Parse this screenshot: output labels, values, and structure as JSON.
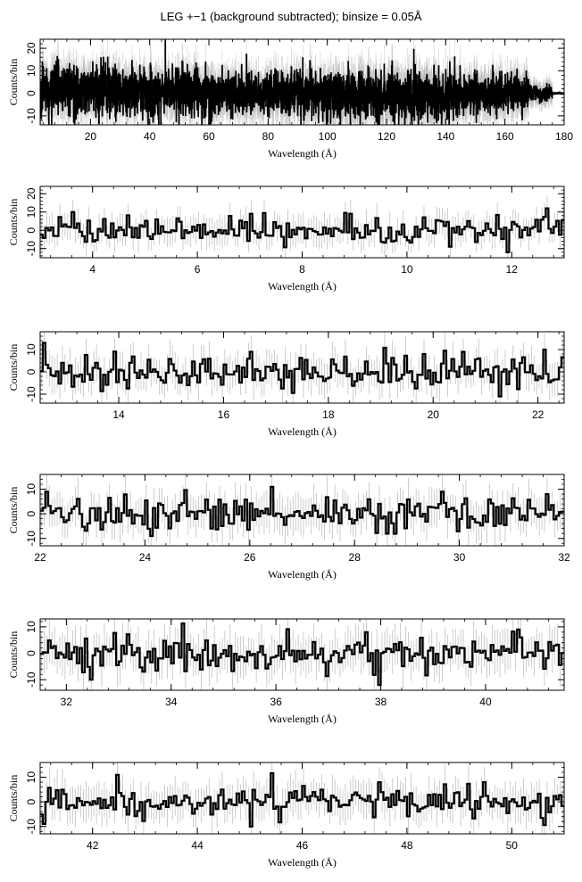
{
  "title": "LEG +−1 (background subtracted); binsize = 0.05Å",
  "chart_data": [
    {
      "type": "line",
      "panel": 1,
      "xlim": [
        3,
        180
      ],
      "ylim": [
        -14,
        24
      ],
      "xlabel": "Wavelength (Å)",
      "ylabel": "Counts/bin",
      "xticks": [
        20,
        40,
        60,
        80,
        100,
        120,
        140,
        160,
        180
      ],
      "yticks": [
        -10,
        0,
        10,
        20
      ],
      "series": [
        {
          "segments": [
            {
              "x0": 3,
              "x1": 60,
              "center": 1,
              "amp": 9,
              "err": 7
            },
            {
              "x0": 60,
              "x1": 100,
              "center": 0,
              "amp": 8,
              "err": 7
            },
            {
              "x0": 100,
              "x1": 145,
              "center": -1,
              "amp": 9,
              "err": 8
            },
            {
              "x0": 145,
              "x1": 168,
              "center": 0,
              "amp": 7,
              "err": 7
            },
            {
              "x0": 168,
              "x1": 176,
              "center": 0,
              "amp": 3,
              "err": 4
            },
            {
              "x0": 176,
              "x1": 180,
              "center": 0,
              "amp": 0.3,
              "err": 0.5
            }
          ],
          "points": [
            {
              "x": 8,
              "y": 12
            },
            {
              "x": 9.2,
              "y": 15
            },
            {
              "x": 84.5,
              "y": 10
            },
            {
              "x": 97,
              "y": -13
            },
            {
              "x": 92,
              "y": -12
            },
            {
              "x": 126,
              "y": -8
            },
            {
              "x": 161,
              "y": -9
            },
            {
              "x": 168,
              "y": 6
            }
          ]
        }
      ]
    },
    {
      "type": "line",
      "panel": 2,
      "xlim": [
        3,
        13
      ],
      "ylim": [
        -15,
        24
      ],
      "xlabel": "Wavelength (Å)",
      "ylabel": "Counts/bin",
      "xticks": [
        4,
        6,
        8,
        10,
        12
      ],
      "yticks": [
        -10,
        0,
        10,
        20
      ],
      "series": [
        {
          "segments": [
            {
              "x0": 3,
              "x1": 13,
              "center": 0,
              "amp": 6,
              "err": 7
            }
          ],
          "points": [
            {
              "x": 3.6,
              "y": 13
            },
            {
              "x": 3.65,
              "y": 10
            },
            {
              "x": 7.0,
              "y": 9
            },
            {
              "x": 8.95,
              "y": 17
            },
            {
              "x": 8.9,
              "y": 9
            },
            {
              "x": 11.9,
              "y": -12
            },
            {
              "x": 12.65,
              "y": 12
            },
            {
              "x": 13.0,
              "y": 8
            }
          ]
        }
      ]
    },
    {
      "type": "line",
      "panel": 3,
      "xlim": [
        12.5,
        22.5
      ],
      "ylim": [
        -14,
        18
      ],
      "xlabel": "Wavelength (Å)",
      "ylabel": "Counts/bin",
      "xticks": [
        14,
        16,
        18,
        20,
        22
      ],
      "yticks": [
        -10,
        0,
        10
      ],
      "series": [
        {
          "segments": [
            {
              "x0": 12.5,
              "x1": 22.5,
              "center": 0,
              "amp": 6,
              "err": 7
            }
          ],
          "points": [
            {
              "x": 12.55,
              "y": 13
            },
            {
              "x": 16.5,
              "y": 9
            },
            {
              "x": 20.55,
              "y": 9
            },
            {
              "x": 21.25,
              "y": -11
            },
            {
              "x": 22.1,
              "y": 10
            }
          ]
        }
      ]
    },
    {
      "type": "line",
      "panel": 4,
      "xlim": [
        22,
        32
      ],
      "ylim": [
        -13,
        16
      ],
      "xlabel": "Wavelength (Å)",
      "ylabel": "Counts/bin",
      "xticks": [
        22,
        24,
        26,
        28,
        30,
        32
      ],
      "yticks": [
        -10,
        0,
        10
      ],
      "series": [
        {
          "segments": [
            {
              "x0": 22,
              "x1": 32,
              "center": 0,
              "amp": 5.5,
              "err": 7
            }
          ],
          "points": [
            {
              "x": 22.15,
              "y": 9
            },
            {
              "x": 26.45,
              "y": 11
            },
            {
              "x": 29.7,
              "y": 9
            },
            {
              "x": 31.7,
              "y": 8
            },
            {
              "x": 24.1,
              "y": -9
            }
          ]
        }
      ]
    },
    {
      "type": "line",
      "panel": 5,
      "xlim": [
        31.5,
        41.5
      ],
      "ylim": [
        -14,
        13
      ],
      "xlabel": "Wavelength (Å)",
      "ylabel": "Counts/bin",
      "xticks": [
        32,
        34,
        36,
        38,
        40
      ],
      "yticks": [
        -10,
        0,
        10
      ],
      "series": [
        {
          "segments": [
            {
              "x0": 31.5,
              "x1": 41.5,
              "center": 0,
              "amp": 5.5,
              "err": 7
            }
          ],
          "points": [
            {
              "x": 37.95,
              "y": -12
            },
            {
              "x": 37.7,
              "y": 8
            },
            {
              "x": 40.6,
              "y": 9
            },
            {
              "x": 32.45,
              "y": -10
            },
            {
              "x": 33.4,
              "y": 2
            }
          ]
        }
      ]
    },
    {
      "type": "line",
      "panel": 6,
      "xlim": [
        41,
        51
      ],
      "ylim": [
        -13,
        16
      ],
      "xlabel": "Wavelength (Å)",
      "ylabel": "Counts/bin",
      "xticks": [
        42,
        44,
        46,
        48,
        50
      ],
      "yticks": [
        -10,
        0,
        10
      ],
      "series": [
        {
          "segments": [
            {
              "x0": 41,
              "x1": 51,
              "center": 0,
              "amp": 5,
              "err": 7
            }
          ],
          "points": [
            {
              "x": 42.45,
              "y": 11
            },
            {
              "x": 45.05,
              "y": -10
            },
            {
              "x": 47.45,
              "y": 8
            },
            {
              "x": 49.45,
              "y": 8
            },
            {
              "x": 50.9,
              "y": 1
            }
          ]
        }
      ]
    }
  ]
}
